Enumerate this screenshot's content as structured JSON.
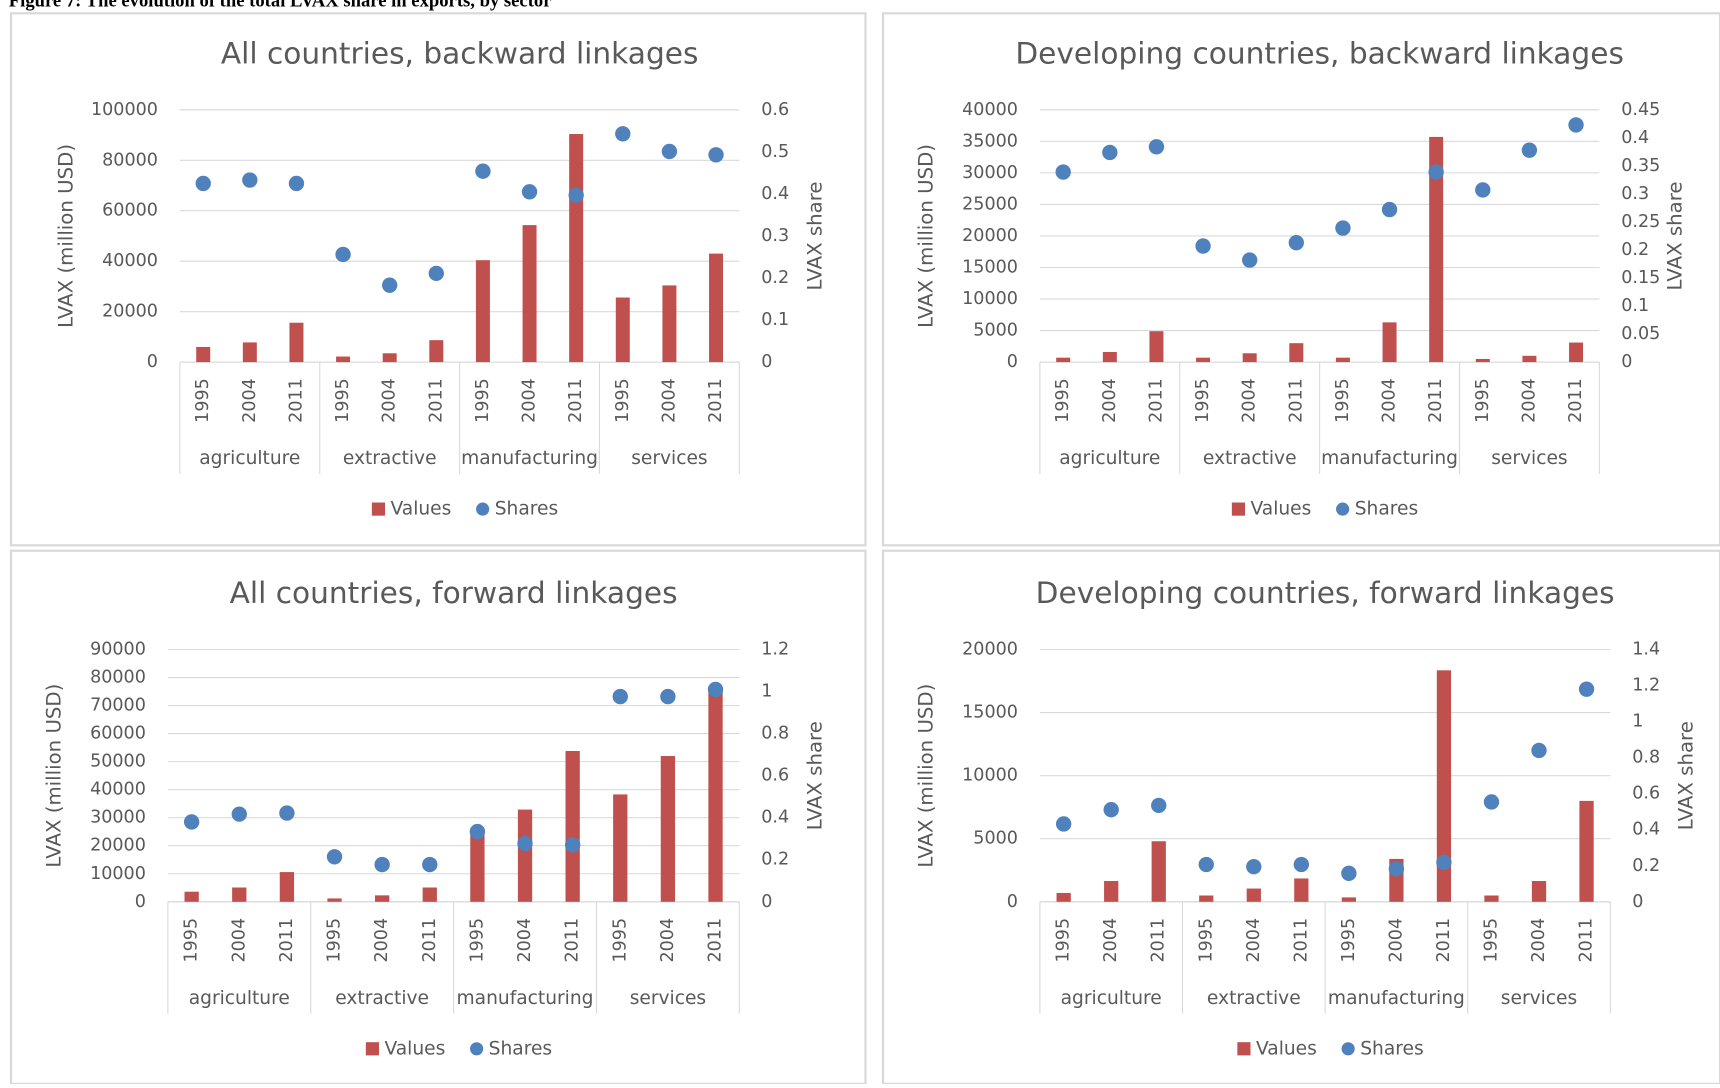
{
  "page_title": "Figure 7: The evolution of the total LVAX share in exports, by sector",
  "chart_data": [
    {
      "type": "combo",
      "title": "All countries, backward linkages",
      "y_label": "LVAX (million USD)",
      "y2_label": "LVAX share",
      "categories": [
        "1995",
        "2004",
        "2011",
        "1995",
        "2004",
        "2011",
        "1995",
        "2004",
        "2011",
        "1995",
        "2004",
        "2011"
      ],
      "groups": [
        "agriculture",
        "extractive",
        "manufacturing",
        "services"
      ],
      "ylim": [
        0,
        100000
      ],
      "yticks": [
        0,
        20000,
        40000,
        60000,
        80000,
        100000
      ],
      "y2lim": [
        0,
        0.6
      ],
      "y2ticks": [
        0,
        0.1,
        0.2,
        0.3,
        0.4,
        0.5,
        0.6
      ],
      "grid": true,
      "series": [
        {
          "name": "Values",
          "color": "#c0504d",
          "kind": "bar",
          "values": [
            6000,
            7800,
            15600,
            2200,
            3500,
            8700,
            40400,
            54300,
            90400,
            25600,
            30400,
            43000
          ]
        },
        {
          "name": "Shares",
          "color": "#4f81bd",
          "kind": "dot",
          "axis": "y2",
          "values": [
            0.425,
            0.433,
            0.425,
            0.256,
            0.183,
            0.211,
            0.454,
            0.405,
            0.397,
            0.543,
            0.501,
            0.493
          ]
        }
      ]
    },
    {
      "type": "combo",
      "title": "Developing countries, backward linkages",
      "y_label": "LVAX (million USD)",
      "y2_label": "LVAX share",
      "categories": [
        "1995",
        "2004",
        "2011",
        "1995",
        "2004",
        "2011",
        "1995",
        "2004",
        "2011",
        "1995",
        "2004",
        "2011"
      ],
      "groups": [
        "agriculture",
        "extractive",
        "manufacturing",
        "services"
      ],
      "ylim": [
        0,
        40000
      ],
      "yticks": [
        0,
        5000,
        10000,
        15000,
        20000,
        25000,
        30000,
        35000,
        40000
      ],
      "y2lim": [
        0,
        0.45
      ],
      "y2ticks": [
        0,
        0.05,
        0.1,
        0.15,
        0.2,
        0.25,
        0.3,
        0.35,
        0.4,
        0.45
      ],
      "grid": true,
      "series": [
        {
          "name": "Values",
          "color": "#c0504d",
          "kind": "bar",
          "values": [
            700,
            1600,
            4900,
            700,
            1400,
            3000,
            700,
            6300,
            35700,
            500,
            1000,
            3100
          ]
        },
        {
          "name": "Shares",
          "color": "#4f81bd",
          "kind": "dot",
          "axis": "y2",
          "values": [
            0.339,
            0.374,
            0.384,
            0.207,
            0.182,
            0.213,
            0.239,
            0.272,
            0.339,
            0.307,
            0.378,
            0.423
          ]
        }
      ]
    },
    {
      "type": "combo",
      "title": "All countries, forward linkages",
      "y_label": "LVAX (million USD)",
      "y2_label": "LVAX share",
      "categories": [
        "1995",
        "2004",
        "2011",
        "1995",
        "2004",
        "2011",
        "1995",
        "2004",
        "2011",
        "1995",
        "2004",
        "2011"
      ],
      "groups": [
        "agriculture",
        "extractive",
        "manufacturing",
        "services"
      ],
      "ylim": [
        0,
        90000
      ],
      "yticks": [
        0,
        10000,
        20000,
        30000,
        40000,
        50000,
        60000,
        70000,
        80000,
        90000
      ],
      "y2lim": [
        0,
        1.2
      ],
      "y2ticks": [
        0,
        0.2,
        0.4,
        0.6,
        0.8,
        1,
        1.2
      ],
      "grid": true,
      "series": [
        {
          "name": "Values",
          "color": "#c0504d",
          "kind": "bar",
          "values": [
            3600,
            5100,
            10600,
            1200,
            2300,
            5100,
            25400,
            32900,
            53800,
            38300,
            52000,
            75500
          ]
        },
        {
          "name": "Shares",
          "color": "#4f81bd",
          "kind": "dot",
          "axis": "y2",
          "values": [
            0.38,
            0.417,
            0.422,
            0.214,
            0.177,
            0.177,
            0.334,
            0.277,
            0.271,
            0.976,
            0.976,
            1.01
          ]
        }
      ]
    },
    {
      "type": "combo",
      "title": "Developing countries, forward linkages",
      "y_label": "LVAX (million USD)",
      "y2_label": "LVAX share",
      "categories": [
        "1995",
        "2004",
        "2011",
        "1995",
        "2004",
        "2011",
        "1995",
        "2004",
        "2011",
        "1995",
        "2004",
        "2011"
      ],
      "groups": [
        "agriculture",
        "extractive",
        "manufacturing",
        "services"
      ],
      "ylim": [
        0,
        20000
      ],
      "yticks": [
        0,
        5000,
        10000,
        15000,
        20000
      ],
      "y2lim": [
        0,
        1.4
      ],
      "y2ticks": [
        0,
        0.2,
        0.4,
        0.6,
        0.8,
        1,
        1.2,
        1.4
      ],
      "grid": true,
      "series": [
        {
          "name": "Values",
          "color": "#c0504d",
          "kind": "bar",
          "values": [
            700,
            1650,
            4800,
            500,
            1050,
            1850,
            350,
            3400,
            18350,
            500,
            1650,
            8000
          ]
        },
        {
          "name": "Shares",
          "color": "#4f81bd",
          "kind": "dot",
          "axis": "y2",
          "values": [
            0.432,
            0.511,
            0.535,
            0.207,
            0.195,
            0.207,
            0.158,
            0.183,
            0.219,
            0.554,
            0.84,
            1.18
          ]
        }
      ]
    }
  ]
}
